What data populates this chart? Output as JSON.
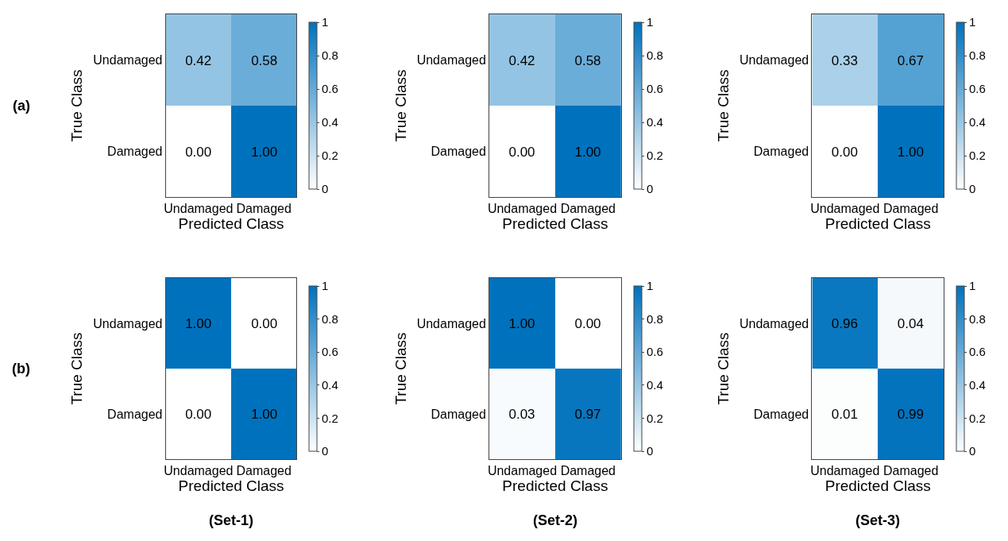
{
  "chart_data": [
    {
      "type": "heatmap",
      "xlabel": "Predicted Class",
      "ylabel": "True Class",
      "categories": [
        "Undamaged",
        "Damaged"
      ],
      "y_categories": [
        "Undamaged",
        "Damaged"
      ],
      "cells": [
        [
          0.42,
          0.58
        ],
        [
          0.0,
          1.0
        ]
      ],
      "cell_labels": [
        [
          "0.42",
          "0.58"
        ],
        [
          "0.00",
          "1.00"
        ]
      ],
      "clim": [
        0,
        1
      ],
      "cticks": [
        0,
        {
          "value": 0.2,
          "label": "0.2"
        },
        {
          "value": 0.4,
          "label": "0.4"
        },
        {
          "value": 0.6,
          "label": "0.6"
        },
        {
          "value": 0.8,
          "label": "0.8"
        },
        1
      ],
      "annotations": [
        "(a)"
      ]
    },
    {
      "type": "heatmap",
      "xlabel": "Predicted Class",
      "ylabel": "True Class",
      "categories": [
        "Undamaged",
        "Damaged"
      ],
      "y_categories": [
        "Undamaged",
        "Damaged"
      ],
      "cells": [
        [
          0.42,
          0.58
        ],
        [
          0.0,
          1.0
        ]
      ],
      "cell_labels": [
        [
          "0.42",
          "0.58"
        ],
        [
          "0.00",
          "1.00"
        ]
      ],
      "clim": [
        0,
        1
      ],
      "cticks": [
        0,
        {
          "value": 0.2,
          "label": "0.2"
        },
        {
          "value": 0.4,
          "label": "0.4"
        },
        {
          "value": 0.6,
          "label": "0.6"
        },
        {
          "value": 0.8,
          "label": "0.8"
        },
        1
      ]
    },
    {
      "type": "heatmap",
      "xlabel": "Predicted Class",
      "ylabel": "True Class",
      "categories": [
        "Undamaged",
        "Damaged"
      ],
      "y_categories": [
        "Undamaged",
        "Damaged"
      ],
      "cells": [
        [
          0.33,
          0.67
        ],
        [
          0.0,
          1.0
        ]
      ],
      "cell_labels": [
        [
          "0.33",
          "0.67"
        ],
        [
          "0.00",
          "1.00"
        ]
      ],
      "clim": [
        0,
        1
      ],
      "cticks": [
        0,
        {
          "value": 0.2,
          "label": "0.2"
        },
        {
          "value": 0.4,
          "label": "0.4"
        },
        {
          "value": 0.6,
          "label": "0.6"
        },
        {
          "value": 0.8,
          "label": "0.8"
        },
        1
      ]
    },
    {
      "type": "heatmap",
      "xlabel": "Predicted Class",
      "ylabel": "True Class",
      "categories": [
        "Undamaged",
        "Damaged"
      ],
      "y_categories": [
        "Undamaged",
        "Damaged"
      ],
      "cells": [
        [
          1.0,
          0.0
        ],
        [
          0.0,
          1.0
        ]
      ],
      "cell_labels": [
        [
          "1.00",
          "0.00"
        ],
        [
          "0.00",
          "1.00"
        ]
      ],
      "clim": [
        0,
        1
      ],
      "cticks": [
        0,
        {
          "value": 0.2,
          "label": "0.2"
        },
        {
          "value": 0.4,
          "label": "0.4"
        },
        {
          "value": 0.6,
          "label": "0.6"
        },
        {
          "value": 0.8,
          "label": "0.8"
        },
        1
      ],
      "annotations": [
        "(b)",
        "(Set-1)"
      ]
    },
    {
      "type": "heatmap",
      "xlabel": "Predicted Class",
      "ylabel": "True Class",
      "categories": [
        "Undamaged",
        "Damaged"
      ],
      "y_categories": [
        "Undamaged",
        "Damaged"
      ],
      "cells": [
        [
          1.0,
          0.0
        ],
        [
          0.03,
          0.97
        ]
      ],
      "cell_labels": [
        [
          "1.00",
          "0.00"
        ],
        [
          "0.03",
          "0.97"
        ]
      ],
      "clim": [
        0,
        1
      ],
      "cticks": [
        0,
        {
          "value": 0.2,
          "label": "0.2"
        },
        {
          "value": 0.4,
          "label": "0.4"
        },
        {
          "value": 0.6,
          "label": "0.6"
        },
        {
          "value": 0.8,
          "label": "0.8"
        },
        1
      ],
      "annotations": [
        "(Set-2)"
      ]
    },
    {
      "type": "heatmap",
      "xlabel": "Predicted Class",
      "ylabel": "True Class",
      "categories": [
        "Undamaged",
        "Damaged"
      ],
      "y_categories": [
        "Undamaged",
        "Damaged"
      ],
      "cells": [
        [
          0.96,
          0.04
        ],
        [
          0.01,
          0.99
        ]
      ],
      "cell_labels": [
        [
          "0.96",
          "0.04"
        ],
        [
          "0.01",
          "0.99"
        ]
      ],
      "clim": [
        0,
        1
      ],
      "cticks": [
        0,
        {
          "value": 0.2,
          "label": "0.2"
        },
        {
          "value": 0.4,
          "label": "0.4"
        },
        {
          "value": 0.6,
          "label": "0.6"
        },
        {
          "value": 0.8,
          "label": "0.8"
        },
        1
      ],
      "annotations": [
        "(Set-3)"
      ]
    }
  ]
}
